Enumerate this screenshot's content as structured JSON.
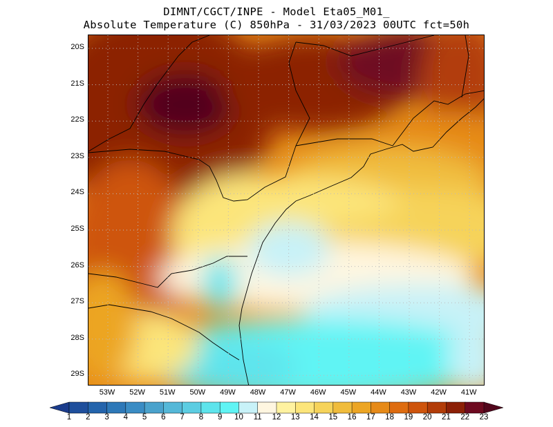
{
  "header": {
    "line1": "DIMNT/CGCT/INPE -  Model Eta05_M01_",
    "line2": "Absolute Temperature (C) 850hPa -  31/03/2023 00UTC fct=50h"
  },
  "map": {
    "latitudes": [
      "20S",
      "21S",
      "22S",
      "23S",
      "24S",
      "25S",
      "26S",
      "27S",
      "28S",
      "29S"
    ],
    "longitudes": [
      "53W",
      "52W",
      "51W",
      "50W",
      "49W",
      "48W",
      "47W",
      "46W",
      "45W",
      "44W",
      "43W",
      "42W",
      "41W"
    ],
    "field": "Absolute Temperature",
    "units": "C",
    "level": "850hPa"
  },
  "colorbar": {
    "labels": [
      "1",
      "2",
      "3",
      "4",
      "5",
      "6",
      "7",
      "8",
      "9",
      "10",
      "11",
      "12",
      "13",
      "14",
      "15",
      "16",
      "17",
      "18",
      "19",
      "20",
      "21",
      "22",
      "23"
    ],
    "colors": [
      "#1b3c8c",
      "#1f4f9c",
      "#2464ac",
      "#2d78b8",
      "#3a8cc4",
      "#4aa2cc",
      "#55b8d8",
      "#5ccde2",
      "#5ee4ec",
      "#60f4f4",
      "#c8f2f8",
      "#fff6e0",
      "#fff2a0",
      "#fce57a",
      "#f6d35a",
      "#f0bc3c",
      "#eca524",
      "#e68a18",
      "#de6c10",
      "#ce540c",
      "#b23c08",
      "#8c2006",
      "#6e0a20",
      "#52061c"
    ]
  }
}
